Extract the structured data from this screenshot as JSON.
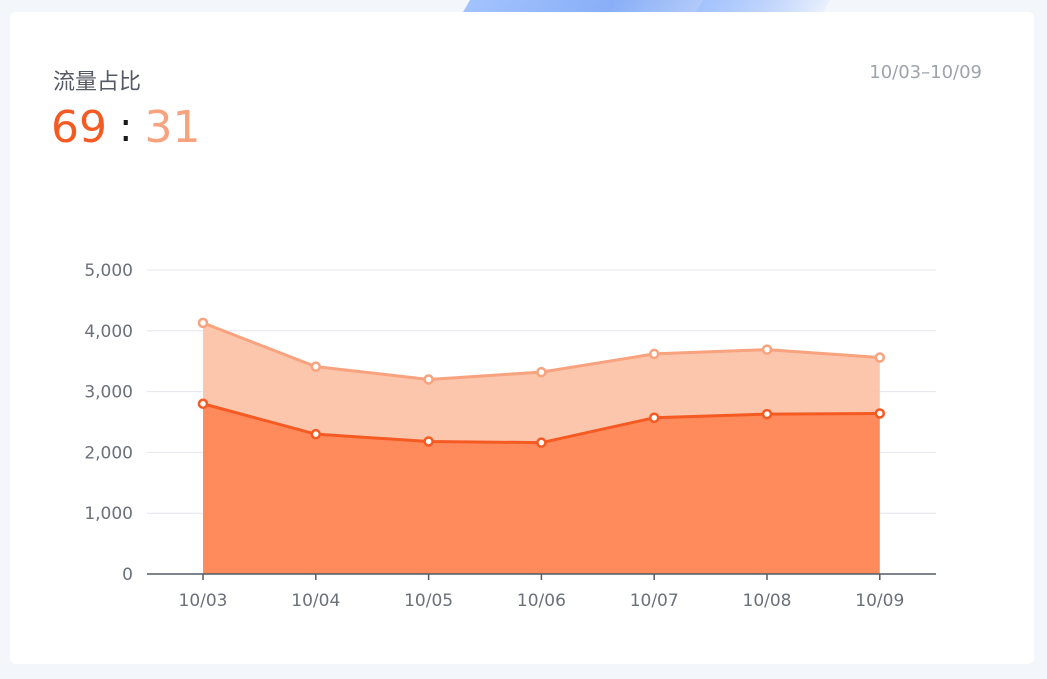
{
  "header": {
    "title": "流量占比",
    "date_range": "10/03–10/09",
    "ratio_primary": "69",
    "ratio_separator": ":",
    "ratio_secondary": "31"
  },
  "colors": {
    "primary": "#f65a23",
    "secondary": "#f8a27e",
    "primary_fill": "#ff8a5b",
    "secondary_fill": "#fbc3a8",
    "grid": "#e3e6ee",
    "axis": "#555a66"
  },
  "chart_data": {
    "type": "area",
    "categories": [
      "10/03",
      "10/04",
      "10/05",
      "10/06",
      "10/07",
      "10/08",
      "10/09"
    ],
    "stacked": true,
    "series": [
      {
        "values": [
          2800,
          2300,
          2180,
          2160,
          2570,
          2630,
          2640
        ]
      },
      {
        "values": [
          1330,
          1110,
          1020,
          1160,
          1050,
          1060,
          920
        ]
      }
    ],
    "ylim": [
      0,
      5000
    ],
    "yticks": [
      "0",
      "1,000",
      "2,000",
      "3,000",
      "4,000",
      "5,000"
    ],
    "ytick_values": [
      0,
      1000,
      2000,
      3000,
      4000,
      5000
    ],
    "grid": true,
    "xlabel": "",
    "ylabel": ""
  }
}
